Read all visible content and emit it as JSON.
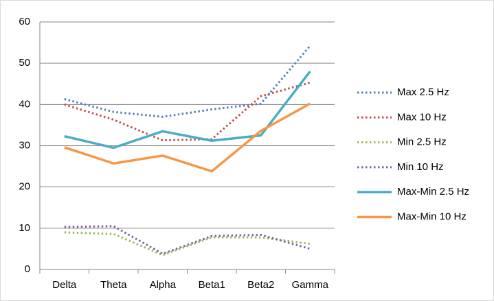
{
  "chart_data": {
    "type": "line",
    "categories": [
      "Delta",
      "Theta",
      "Alpha",
      "Beta1",
      "Beta2",
      "Gamma"
    ],
    "series": [
      {
        "name": "Max 2.5 Hz",
        "color": "#4f81bd",
        "style": "dotted",
        "values": [
          41.3,
          38.2,
          37,
          38.8,
          40.2,
          54.2
        ]
      },
      {
        "name": "Max 10 Hz",
        "color": "#c0504d",
        "style": "dotted",
        "values": [
          40,
          36.3,
          31.3,
          31.6,
          42,
          45.3
        ]
      },
      {
        "name": "Min 2.5 Hz",
        "color": "#9bbb59",
        "style": "dotted",
        "values": [
          9,
          8.6,
          3.5,
          7.8,
          7.8,
          6.2
        ]
      },
      {
        "name": "Min 10 Hz",
        "color": "#8064a2",
        "style": "dotted",
        "values": [
          10.3,
          10.5,
          3.8,
          8.1,
          8.4,
          5
        ]
      },
      {
        "name": "Max-Min 2.5 Hz",
        "color": "#4bacc6",
        "style": "solid",
        "values": [
          32.3,
          29.5,
          33.5,
          31.2,
          32.5,
          48
        ]
      },
      {
        "name": "Max-Min 10 Hz",
        "color": "#f79646",
        "style": "solid",
        "values": [
          29.6,
          25.7,
          27.6,
          23.8,
          33.6,
          40.2
        ]
      }
    ],
    "ylim": [
      0,
      60
    ],
    "yticks": [
      0,
      10,
      20,
      30,
      40,
      50,
      60
    ],
    "grid": true,
    "legend": "right"
  }
}
